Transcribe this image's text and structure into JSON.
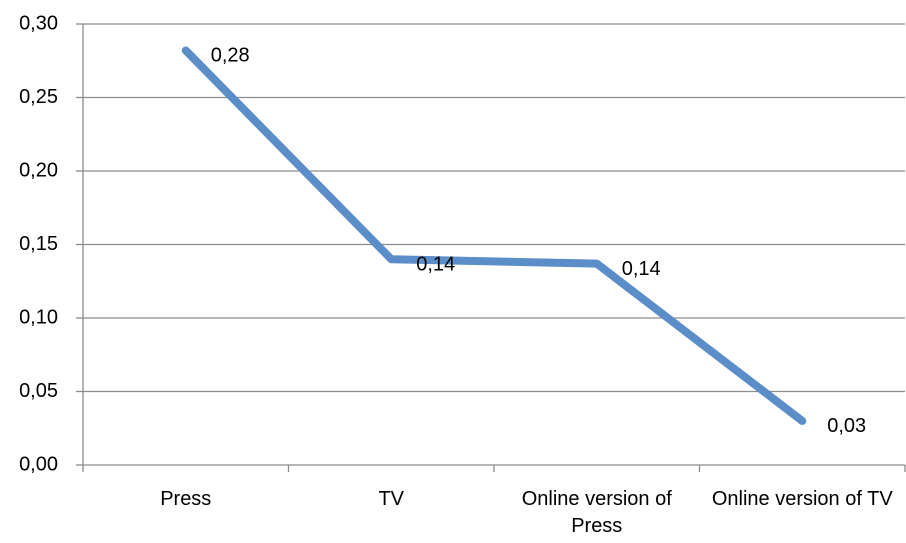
{
  "chart_data": {
    "type": "line",
    "categories": [
      "Press",
      "TV",
      "Online version of Press",
      "Online version of TV"
    ],
    "series": [
      {
        "name": null,
        "color": "#5b8dc9",
        "values": [
          0.282,
          0.14,
          0.137,
          0.03
        ],
        "value_labels": [
          "0,28",
          "0,14",
          "0,14",
          "0,03"
        ]
      }
    ],
    "ylim": [
      0,
      0.3
    ],
    "yticks": [
      {
        "value": 0,
        "label": "0,00"
      },
      {
        "value": 0.05,
        "label": "0,05"
      },
      {
        "value": 0.1,
        "label": "0,10"
      },
      {
        "value": 0.15,
        "label": "0,15"
      },
      {
        "value": 0.2,
        "label": "0,20"
      },
      {
        "value": 0.25,
        "label": "0,25"
      },
      {
        "value": 0.3,
        "label": "0,30"
      }
    ],
    "grid": true
  }
}
